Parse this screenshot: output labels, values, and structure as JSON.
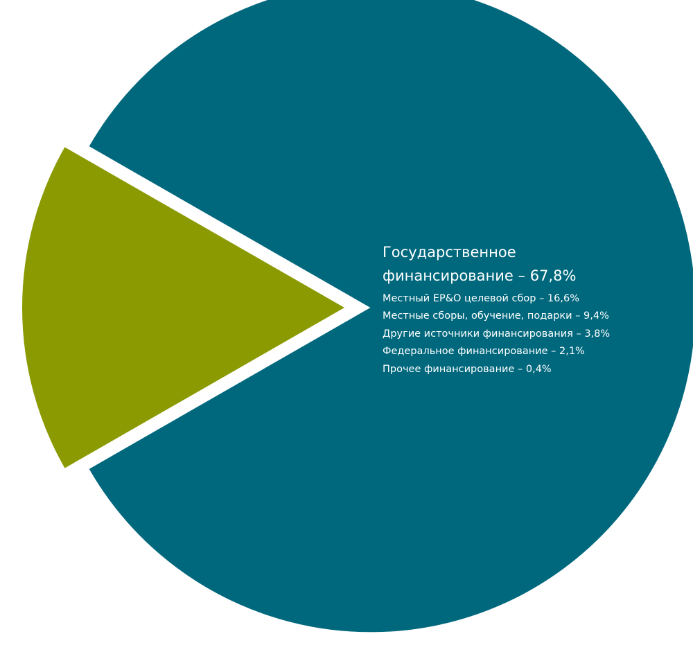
{
  "chart_data": {
    "type": "pie",
    "title": "",
    "series": [
      {
        "slices": [
          {
            "label": "Государственное финансирование",
            "value": 67.8,
            "color": "#00687D"
          },
          {
            "label": "Местный EP&O целевой сбор",
            "value": 16.6,
            "color": "#8A9A00"
          },
          {
            "label": "Местные сборы, обучение, подарки",
            "value": 9.4,
            "color": "#00687D"
          },
          {
            "label": "Другие источники финансирования",
            "value": 3.8,
            "color": "#00687D"
          },
          {
            "label": "Федеральное финансирование",
            "value": 2.1,
            "color": "#00687D"
          },
          {
            "label": "Прочее финансирование",
            "value": 0.4,
            "color": "#00687D"
          }
        ]
      }
    ],
    "labels": {
      "main_line1": "Государственное",
      "main_line2": "финансирование – 67,8%",
      "items": [
        "Местный EP&O целевой сбор – 16,6%",
        "Местные сборы, обучение, подарки – 9,4%",
        "Другие источники финансирования – 3,8%",
        "Федеральное финансирование – 2,1%",
        "Прочее финансирование – 0,4%"
      ]
    },
    "exploded_slice": "Местный EP&O целевой сбор"
  }
}
